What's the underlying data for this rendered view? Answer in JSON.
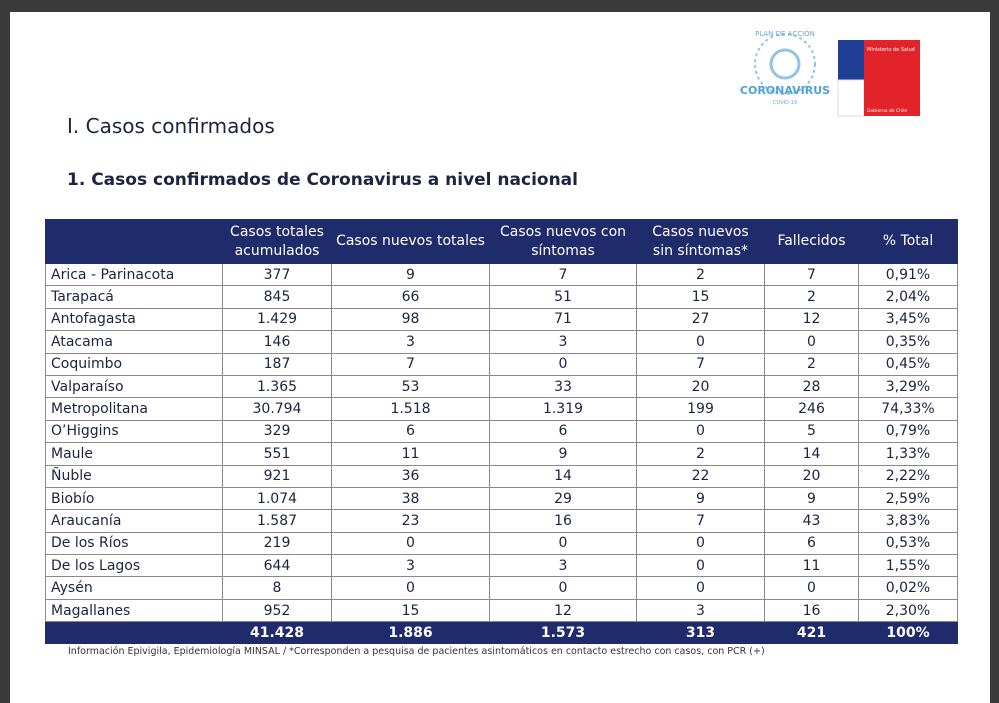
{
  "logos": {
    "plan": "PLAN DE ACCIÓN",
    "coronavirus": "CORONAVIRUS",
    "covid": "COVID-19",
    "ministry": "Ministerio de Salud",
    "government": "Gobierno de Chile"
  },
  "header": {
    "title": "I. Casos confirmados",
    "subtitle": "1. Casos confirmados de Coronavirus a nivel nacional"
  },
  "table": {
    "columns": [
      "",
      "Casos totales acumulados",
      "Casos nuevos totales",
      "Casos nuevos con síntomas",
      "Casos nuevos sin síntomas*",
      "Fallecidos",
      "% Total"
    ],
    "rows": [
      [
        "Arica - Parinacota",
        "377",
        "9",
        "7",
        "2",
        "7",
        "0,91%"
      ],
      [
        "Tarapacá",
        "845",
        "66",
        "51",
        "15",
        "2",
        "2,04%"
      ],
      [
        "Antofagasta",
        "1.429",
        "98",
        "71",
        "27",
        "12",
        "3,45%"
      ],
      [
        "Atacama",
        "146",
        "3",
        "3",
        "0",
        "0",
        "0,35%"
      ],
      [
        "Coquimbo",
        "187",
        "7",
        "0",
        "7",
        "2",
        "0,45%"
      ],
      [
        "Valparaíso",
        "1.365",
        "53",
        "33",
        "20",
        "28",
        "3,29%"
      ],
      [
        "Metropolitana",
        "30.794",
        "1.518",
        "1.319",
        "199",
        "246",
        "74,33%"
      ],
      [
        "O’Higgins",
        "329",
        "6",
        "6",
        "0",
        "5",
        "0,79%"
      ],
      [
        "Maule",
        "551",
        "11",
        "9",
        "2",
        "14",
        "1,33%"
      ],
      [
        "Ñuble",
        "921",
        "36",
        "14",
        "22",
        "20",
        "2,22%"
      ],
      [
        "Biobío",
        "1.074",
        "38",
        "29",
        "9",
        "9",
        "2,59%"
      ],
      [
        "Araucanía",
        "1.587",
        "23",
        "16",
        "7",
        "43",
        "3,83%"
      ],
      [
        "De los Ríos",
        "219",
        "0",
        "0",
        "0",
        "6",
        "0,53%"
      ],
      [
        "De los Lagos",
        "644",
        "3",
        "3",
        "0",
        "11",
        "1,55%"
      ],
      [
        "Aysén",
        "8",
        "0",
        "0",
        "0",
        "0",
        "0,02%"
      ],
      [
        "Magallanes",
        "952",
        "15",
        "12",
        "3",
        "16",
        "2,30%"
      ]
    ],
    "totals": [
      "41.428",
      "1.886",
      "1.573",
      "313",
      "421",
      "100%"
    ]
  },
  "footnote": "Información Epivigila, Epidemiología MINSAL / *Corresponden a pesquisa de pacientes asintomáticos en contacto estrecho con casos, con PCR (+)"
}
